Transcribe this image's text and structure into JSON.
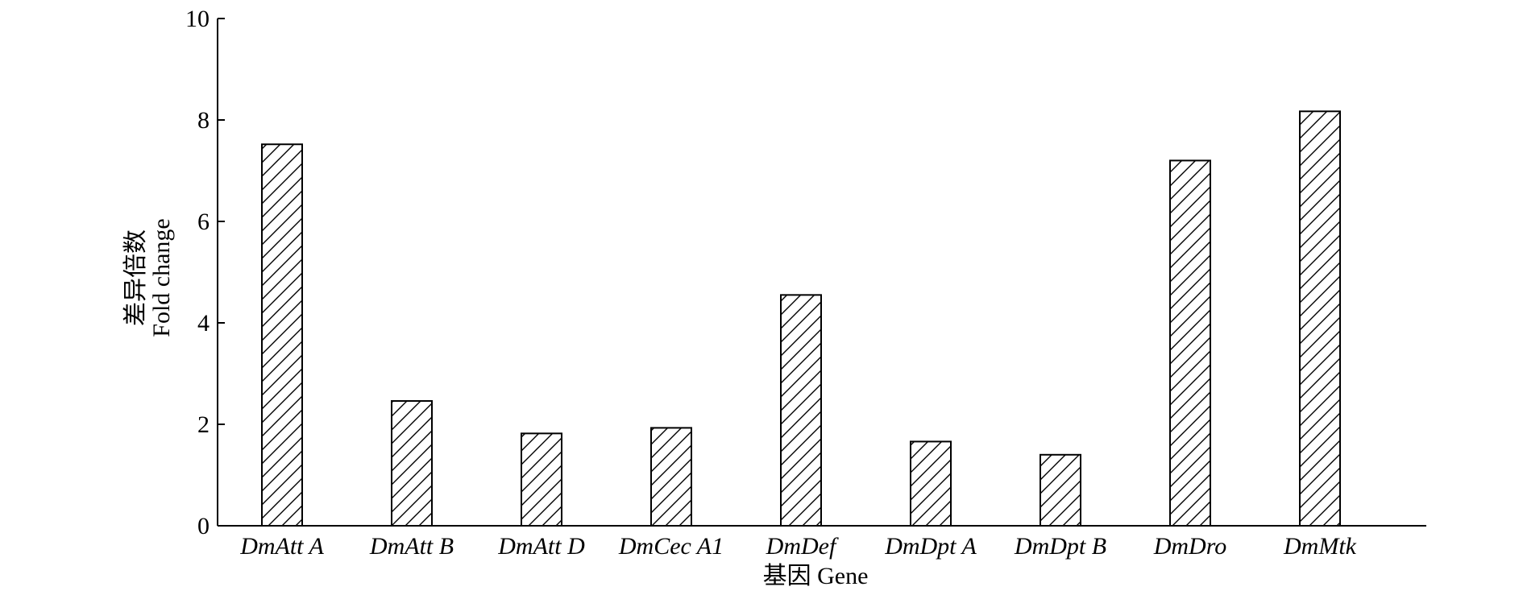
{
  "chart_data": {
    "type": "bar",
    "categories": [
      "DmAtt A",
      "DmAtt B",
      "DmAtt D",
      "DmCec A1",
      "DmDef",
      "DmDpt A",
      "DmDpt B",
      "DmDro",
      "DmMtk"
    ],
    "values": [
      7.52,
      2.46,
      1.82,
      1.93,
      4.55,
      1.66,
      1.4,
      7.2,
      8.17
    ],
    "ylim": [
      0,
      10
    ],
    "yticks": [
      0,
      2,
      4,
      6,
      8,
      10
    ],
    "ylabel_cn": "差异倍数",
    "ylabel_en": "Fold change",
    "xlabel": "基因 Gene",
    "bar_fill": "hatched-diagonal",
    "bar_stroke": "#000000",
    "grid": false,
    "legend": false
  }
}
